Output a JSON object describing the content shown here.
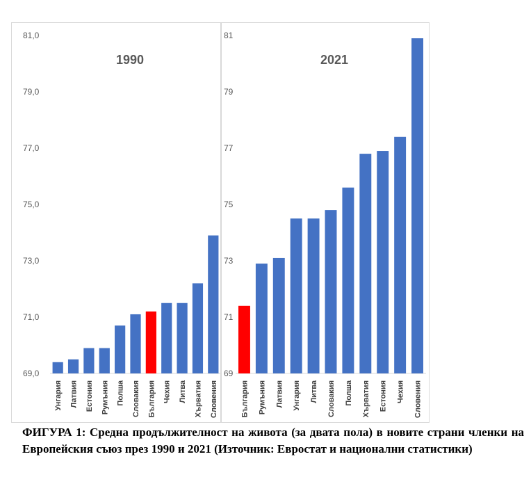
{
  "chart_data": [
    {
      "type": "bar",
      "title": "1990",
      "categories": [
        "Унгария",
        "Латвия",
        "Естония",
        "Румъния",
        "Полша",
        "Словакия",
        "България",
        "Чехия",
        "Литва",
        "Хърватия",
        "Словения"
      ],
      "values": [
        69.4,
        69.5,
        69.9,
        69.9,
        70.7,
        71.1,
        71.2,
        71.5,
        71.5,
        72.2,
        73.9
      ],
      "yticks": [
        "69,0",
        "71,0",
        "73,0",
        "75,0",
        "77,0",
        "79,0",
        "81,0"
      ],
      "ylim": [
        69,
        81
      ],
      "colors": {
        "default": "#4472C4",
        "highlight": "#FF0000"
      },
      "highlight": "България",
      "grid": false
    },
    {
      "type": "bar",
      "title": "2021",
      "categories": [
        "България",
        "Румъния",
        "Латвия",
        "Унгария",
        "Литва",
        "Словакия",
        "Полша",
        "Хърватия",
        "Естония",
        "Чехия",
        "Словения"
      ],
      "values": [
        71.4,
        72.9,
        73.1,
        74.5,
        74.5,
        74.8,
        75.6,
        76.8,
        76.9,
        77.4,
        80.9
      ],
      "yticks": [
        "69",
        "71",
        "73",
        "75",
        "77",
        "79",
        "81"
      ],
      "ylim": [
        69,
        81
      ],
      "colors": {
        "default": "#4472C4",
        "highlight": "#FF0000"
      },
      "highlight": "България",
      "grid": false
    }
  ],
  "caption": "ФИГУРА 1: Средна продължителност на живота (за двата пола) в новите страни членки на Европейския съюз през 1990 и 2021 (Източник: Евростат и национални статистики)"
}
